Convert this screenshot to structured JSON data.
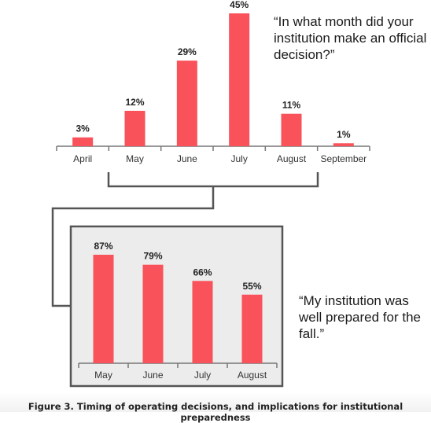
{
  "quotes": {
    "top": "“In what month did your institution make an official decision?”",
    "bottom": "“My institution was well prepared for the fall.”"
  },
  "caption": "Figure 3. Timing of operating decisions, and implications for institutional preparedness",
  "colors": {
    "bar": "#f9525a",
    "axis": "#777777",
    "panel_bg": "#ececec",
    "panel_border": "#555555",
    "bracket": "#555555"
  },
  "chart_data": [
    {
      "type": "bar",
      "title": "“In what month did your institution make an official decision?”",
      "categories": [
        "April",
        "May",
        "June",
        "July",
        "August",
        "September"
      ],
      "values": [
        3,
        12,
        29,
        45,
        11,
        1
      ],
      "data_labels": [
        "3%",
        "12%",
        "29%",
        "45%",
        "11%",
        "1%"
      ],
      "ylim": [
        0,
        45
      ],
      "grid": false
    },
    {
      "type": "bar",
      "title": "“My institution was well prepared for the fall.”",
      "categories": [
        "May",
        "June",
        "July",
        "August"
      ],
      "values": [
        87,
        79,
        66,
        55
      ],
      "data_labels": [
        "87%",
        "79%",
        "66%",
        "55%"
      ],
      "ylim": [
        0,
        87
      ],
      "grid": false
    }
  ]
}
